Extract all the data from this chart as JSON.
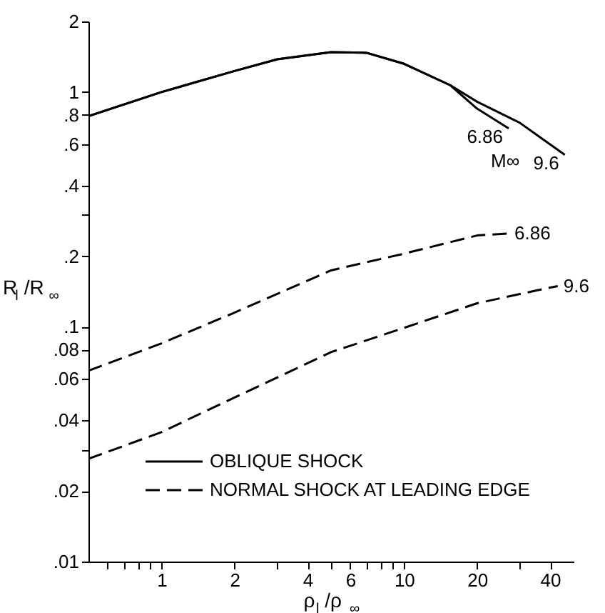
{
  "chart_data": {
    "type": "line",
    "xlabel": "ρ$_{l}$/ρ$_{∞}$",
    "ylabel": "R$_{l}$/R$_{∞}$",
    "log": "xy",
    "grid": false,
    "legend": "bottom",
    "marker": "none",
    "xlim": [
      0.5,
      50
    ],
    "ylim": [
      0.01,
      2
    ],
    "xticks": [
      {
        "value": 0.6,
        "label": null
      },
      {
        "value": 0.7,
        "label": null
      },
      {
        "value": 0.8,
        "label": null
      },
      {
        "value": 0.9,
        "label": null
      },
      1,
      2,
      {
        "value": 3,
        "label": null
      },
      4,
      {
        "value": 5,
        "label": null
      },
      6,
      {
        "value": 7,
        "label": null
      },
      {
        "value": 8,
        "label": null
      },
      {
        "value": 9,
        "label": null
      },
      10,
      20,
      {
        "value": 30,
        "label": null
      },
      40
    ],
    "yticks": [
      {
        "value": 0.01,
        "label": ".01"
      },
      {
        "value": 0.02,
        "label": ".02"
      },
      {
        "value": 0.03,
        "label": null
      },
      {
        "value": 0.04,
        "label": ".04"
      },
      {
        "value": 0.06,
        "label": ".06"
      },
      {
        "value": 0.08,
        "label": ".08"
      },
      {
        "value": 0.1,
        "label": ".1"
      },
      {
        "value": 0.2,
        "label": ".2"
      },
      {
        "value": 0.3,
        "label": null
      },
      {
        "value": 0.4,
        "label": ".4"
      },
      {
        "value": 0.6,
        "label": ".6"
      },
      {
        "value": 0.8,
        "label": ".8"
      },
      1,
      2
    ],
    "series": [
      {
        "name": "OBLIQUE SHOCK",
        "color": "#000000",
        "line_style": "solid",
        "x": [
          0.5,
          1,
          2,
          3,
          5,
          7,
          10,
          15.5,
          20,
          27
        ],
        "values": [
          0.79,
          1.0,
          1.23,
          1.38,
          1.48,
          1.47,
          1.32,
          1.07,
          0.85,
          0.7
        ]
      },
      {
        "color": "#000000",
        "line_style": "solid",
        "x": [
          0.5,
          1,
          2,
          3,
          5,
          7,
          10,
          15.5,
          20,
          30,
          46
        ],
        "values": [
          0.79,
          1.0,
          1.23,
          1.38,
          1.48,
          1.47,
          1.32,
          1.07,
          0.91,
          0.74,
          0.54
        ]
      },
      {
        "name": "NORMAL SHOCK AT LEADING EDGE",
        "color": "#000000",
        "line_style": "dashed",
        "x": [
          0.5,
          1,
          2,
          5,
          10,
          20,
          27
        ],
        "values": [
          0.065,
          0.085,
          0.115,
          0.174,
          0.205,
          0.245,
          0.25
        ]
      },
      {
        "color": "#000000",
        "line_style": "dashed",
        "x": [
          0.5,
          1,
          2,
          5,
          10,
          20,
          40,
          43
        ],
        "values": [
          0.0274,
          0.0356,
          0.05,
          0.078,
          0.099,
          0.126,
          0.147,
          0.149
        ]
      }
    ],
    "annotations": [
      {
        "text": "6.86",
        "x": 27,
        "y": 0.7
      },
      "M∞",
      {
        "text": "9.6",
        "x": 46,
        "y": 0.54
      },
      {
        "text": "6.86",
        "x": 27,
        "y": 0.25
      },
      {
        "text": "9.6",
        "x": 43,
        "y": 0.149
      }
    ]
  }
}
